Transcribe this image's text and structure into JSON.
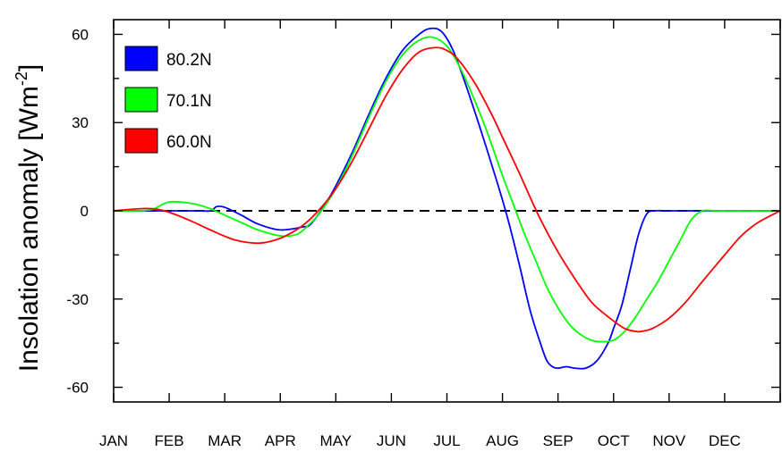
{
  "chart_data": {
    "type": "line",
    "title": "",
    "xlabel": "",
    "ylabel_main": "Insolation anomaly [Wm",
    "ylabel_sup": "-2",
    "ylabel_close": "]",
    "xlim": [
      0,
      12
    ],
    "ylim": [
      -65,
      65
    ],
    "yticks": [
      -60,
      -30,
      0,
      30,
      60
    ],
    "ytick_labels": [
      "-60",
      "-30",
      "0",
      "30",
      "60"
    ],
    "xticks": [
      0,
      1,
      2,
      3,
      4,
      5,
      6,
      7,
      8,
      9,
      10,
      11
    ],
    "xtick_labels": [
      "JAN",
      "FEB",
      "MAR",
      "APR",
      "MAY",
      "JUN",
      "JUL",
      "AUG",
      "SEP",
      "OCT",
      "NOV",
      "DEC"
    ],
    "reference_line": {
      "y": 0,
      "style": "dashed",
      "color": "#000000"
    },
    "legend_position": "top-left",
    "series": [
      {
        "name": "80.2N",
        "color": "#0000ff",
        "x": [
          0,
          0.8,
          1.5,
          1.75,
          1.85,
          2.0,
          2.3,
          2.6,
          3.0,
          3.4,
          3.55,
          3.8,
          4.0,
          4.3,
          4.6,
          4.9,
          5.2,
          5.5,
          5.7,
          5.9,
          6.1,
          6.3,
          6.6,
          6.9,
          7.1,
          7.3,
          7.5,
          7.7,
          7.8,
          7.9,
          8.0,
          8.15,
          8.3,
          8.5,
          8.7,
          8.9,
          9.0,
          9.15,
          9.3,
          9.45,
          9.6,
          9.75,
          10,
          11,
          12
        ],
        "y": [
          0,
          0,
          0,
          0,
          1.4,
          1.2,
          -1.5,
          -4.5,
          -6.5,
          -5.5,
          -4.5,
          2.0,
          8.5,
          20,
          33,
          45,
          54.5,
          60,
          62,
          61,
          55,
          45,
          28,
          10,
          -3,
          -18,
          -34,
          -46,
          -51,
          -53,
          -53.5,
          -53,
          -53.5,
          -53.5,
          -51,
          -45,
          -40,
          -32,
          -20,
          -8,
          -1,
          0,
          0,
          0,
          0
        ]
      },
      {
        "name": "70.1N",
        "color": "#00ff00",
        "x": [
          0,
          0.4,
          0.7,
          1.0,
          1.4,
          1.7,
          2.0,
          2.3,
          2.6,
          3.0,
          3.3,
          3.5,
          3.7,
          4.0,
          4.3,
          4.6,
          4.9,
          5.2,
          5.5,
          5.75,
          6.0,
          6.2,
          6.4,
          6.7,
          7.0,
          7.2,
          7.4,
          7.6,
          7.8,
          8.0,
          8.2,
          8.4,
          8.6,
          8.8,
          9.0,
          9.2,
          9.4,
          9.6,
          9.8,
          10.0,
          10.2,
          10.4,
          10.6,
          10.8,
          11,
          12
        ],
        "y": [
          0,
          0,
          0.5,
          3,
          2.5,
          1,
          -1.5,
          -4,
          -6.5,
          -8.5,
          -8,
          -5,
          -1,
          7.5,
          19,
          32,
          44,
          53,
          58,
          59,
          56,
          50,
          42,
          28,
          12,
          2,
          -8,
          -17,
          -26,
          -33,
          -38.5,
          -42,
          -44,
          -44.5,
          -44,
          -41,
          -36,
          -30,
          -24,
          -17,
          -10,
          -3,
          0,
          0,
          0,
          0
        ]
      },
      {
        "name": "60.0N",
        "color": "#ff0000",
        "x": [
          0,
          0.3,
          0.6,
          0.8,
          1.0,
          1.4,
          1.8,
          2.2,
          2.6,
          2.9,
          3.2,
          3.5,
          3.8,
          4.0,
          4.3,
          4.6,
          4.9,
          5.2,
          5.5,
          5.8,
          6.0,
          6.2,
          6.5,
          6.8,
          7.0,
          7.3,
          7.5,
          7.7,
          8.0,
          8.3,
          8.6,
          8.9,
          9.2,
          9.4,
          9.5,
          9.7,
          10.0,
          10.3,
          10.6,
          11.0,
          11.3,
          11.6,
          12
        ],
        "y": [
          0,
          0.5,
          0.8,
          0.5,
          -0.5,
          -3.5,
          -7,
          -10,
          -11,
          -10,
          -7.5,
          -3.5,
          2.5,
          7.5,
          17,
          28,
          39,
          48,
          54,
          55.5,
          54.5,
          51.5,
          43.5,
          33,
          25,
          13,
          4.5,
          -3.5,
          -14,
          -23,
          -31,
          -36,
          -40,
          -41,
          -41,
          -40,
          -36.5,
          -31,
          -24,
          -15,
          -8.5,
          -4,
          0
        ]
      }
    ]
  }
}
